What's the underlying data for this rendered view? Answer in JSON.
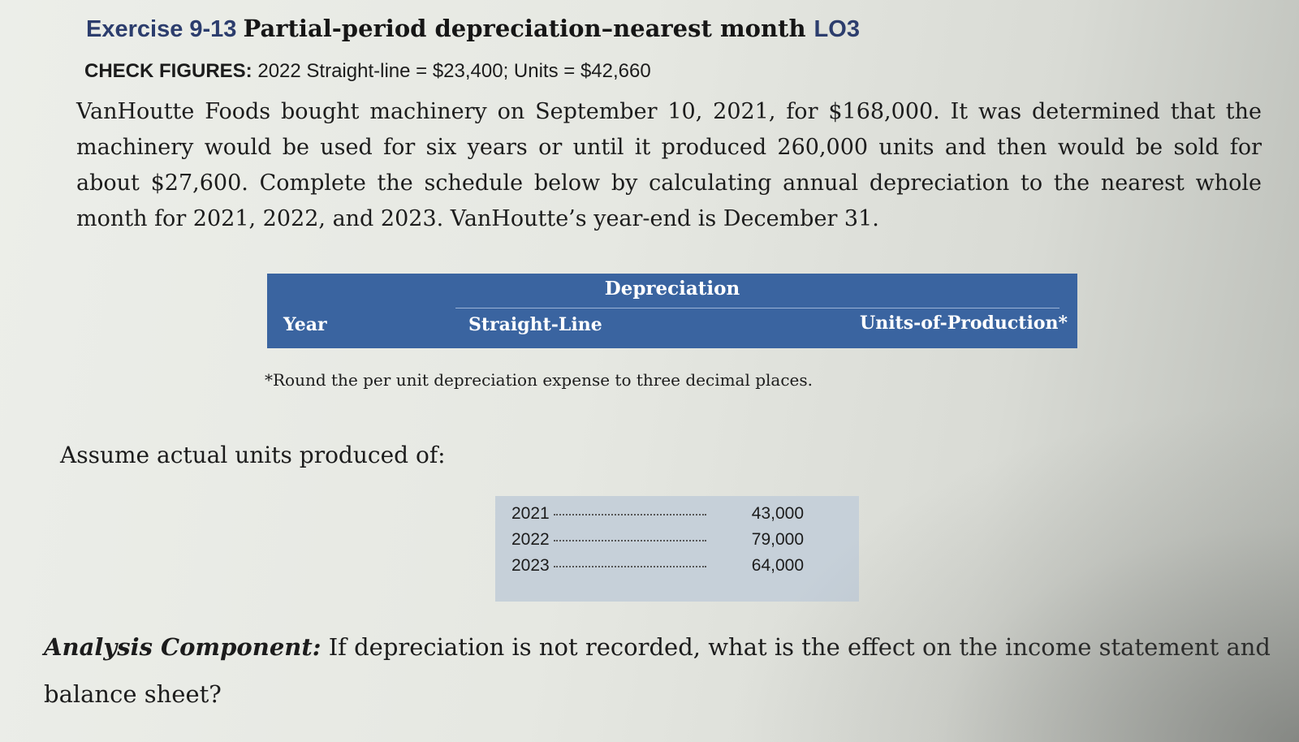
{
  "exercise": {
    "number": "Exercise 9-13",
    "title": "Partial-period depreciation–nearest month",
    "lo": "LO3"
  },
  "check_figures": {
    "label": "CHECK FIGURES:",
    "text": "2022 Straight-line = $23,400; Units = $42,660"
  },
  "paragraph": "VanHoutte Foods bought machinery on September 10, 2021, for $168,000. It was determined that the machinery would be used for six years or until it produced 260,000 units and then would be sold for about $27,600. Complete the schedule below by calculating annual depreciation to the nearest whole month for 2021, 2022, and 2023. VanHoutte’s year-end is December 31.",
  "table": {
    "group_header": "Depreciation",
    "col_year": "Year",
    "col_straight_line": "Straight-Line",
    "col_units": "Units-of-Production*"
  },
  "footnote": "*Round the per unit depreciation expense to three decimal places.",
  "assume_label": "Assume actual units produced of:",
  "units": [
    {
      "year": "2021",
      "value": "43,000"
    },
    {
      "year": "2022",
      "value": "79,000"
    },
    {
      "year": "2023",
      "value": "64,000"
    }
  ],
  "analysis": {
    "label": "Analysis Component:",
    "text": "If depreciation is not recorded, what is the effect on the income statement and balance sheet?"
  }
}
